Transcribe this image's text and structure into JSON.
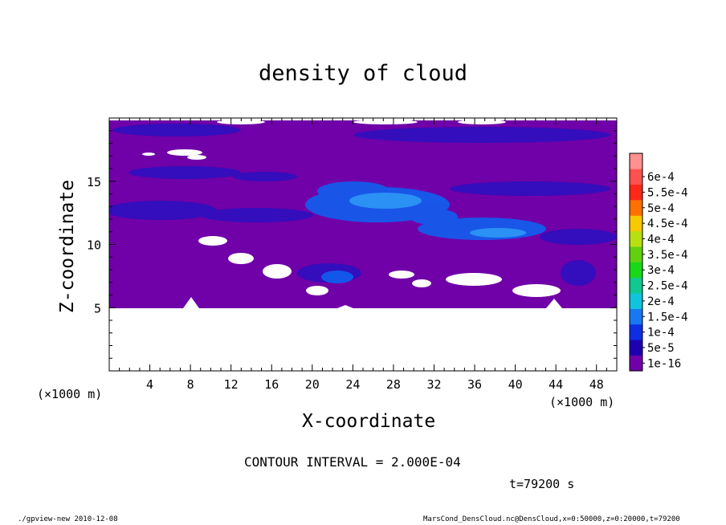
{
  "chart_data": {
    "type": "heatmap",
    "title": "density of cloud",
    "xlabel": "X-coordinate",
    "ylabel": "Z-coordinate",
    "x_unit_label": "(×1000 m)",
    "x_range": [
      0,
      50
    ],
    "y_range": [
      0,
      20
    ],
    "x_ticks": [
      4,
      8,
      12,
      16,
      20,
      24,
      28,
      32,
      36,
      40,
      44,
      48
    ],
    "y_ticks": [
      5,
      10,
      15
    ],
    "colorbar": {
      "labels": [
        "1e-16",
        "5e-5",
        "1e-4",
        "1.5e-4",
        "2e-4",
        "2.5e-4",
        "3e-4",
        "3.5e-4",
        "4e-4",
        "4.5e-4",
        "5e-4",
        "5.5e-4",
        "6e-4"
      ],
      "colors": [
        "#7000a8",
        "#1e00b0",
        "#0e2ee6",
        "#1878f4",
        "#10c4dc",
        "#10c890",
        "#18d818",
        "#60d010",
        "#b8e010",
        "#f8c800",
        "#ff7000",
        "#ff2818",
        "#ff5050",
        "#ff9090"
      ]
    },
    "contour_interval_text": "CONTOUR INTERVAL = 2.000E-04",
    "time_text": "t=79200 s",
    "footer_left": "./gpview-new   2010-12-08",
    "footer_right": "MarsCond_DensCloud.nc@DensCloud,x=0:50000,z=0:20000,t=79200"
  }
}
